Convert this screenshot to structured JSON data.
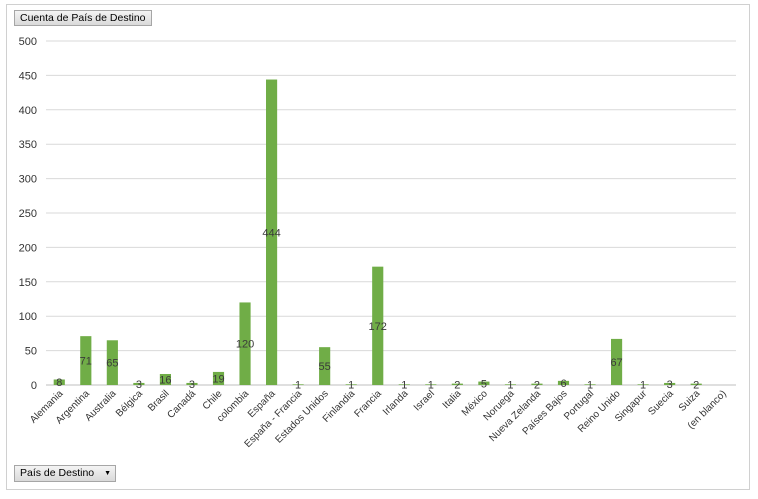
{
  "pivot": {
    "value_field": "Cuenta de País de Destino",
    "axis_field": "País de Destino",
    "axis_field_icon": "dropdown-arrow-icon"
  },
  "colors": {
    "bar": "#70ad47",
    "grid": "#d9d9d9",
    "axis": "#bfbfbf"
  },
  "chart_data": {
    "type": "bar",
    "categories": [
      "Alemania",
      "Argentina",
      "Australia",
      "Bélgica",
      "Brasil",
      "Canadá",
      "Chile",
      "colombia",
      "España",
      "España - Francia",
      "Estados Unidos",
      "Finlandia",
      "Francia",
      "Irlanda",
      "Israel",
      "Italia",
      "México",
      "Noruega",
      "Nueva Zelanda",
      "Países Bajos",
      "Portugal",
      "Reino Unido",
      "Singapur",
      "Suecia",
      "Suiza",
      "(en blanco)"
    ],
    "values": [
      8,
      71,
      65,
      3,
      16,
      3,
      19,
      120,
      444,
      1,
      55,
      1,
      172,
      1,
      1,
      2,
      5,
      1,
      2,
      6,
      1,
      67,
      1,
      3,
      2,
      null
    ],
    "data_labels": [
      "8",
      "71",
      "65",
      "3",
      "16",
      "3",
      "19",
      "120",
      "444",
      "1",
      "55",
      "1",
      "172",
      "1",
      "1",
      "2",
      "5",
      "1",
      "2",
      "6",
      "1",
      "67",
      "1",
      "3",
      "2",
      ""
    ],
    "title": "",
    "xlabel": "",
    "ylabel": "",
    "ylim": [
      0,
      500
    ],
    "yticks": [
      0,
      50,
      100,
      150,
      200,
      250,
      300,
      350,
      400,
      450,
      500
    ],
    "grid": true,
    "legend": "none"
  }
}
